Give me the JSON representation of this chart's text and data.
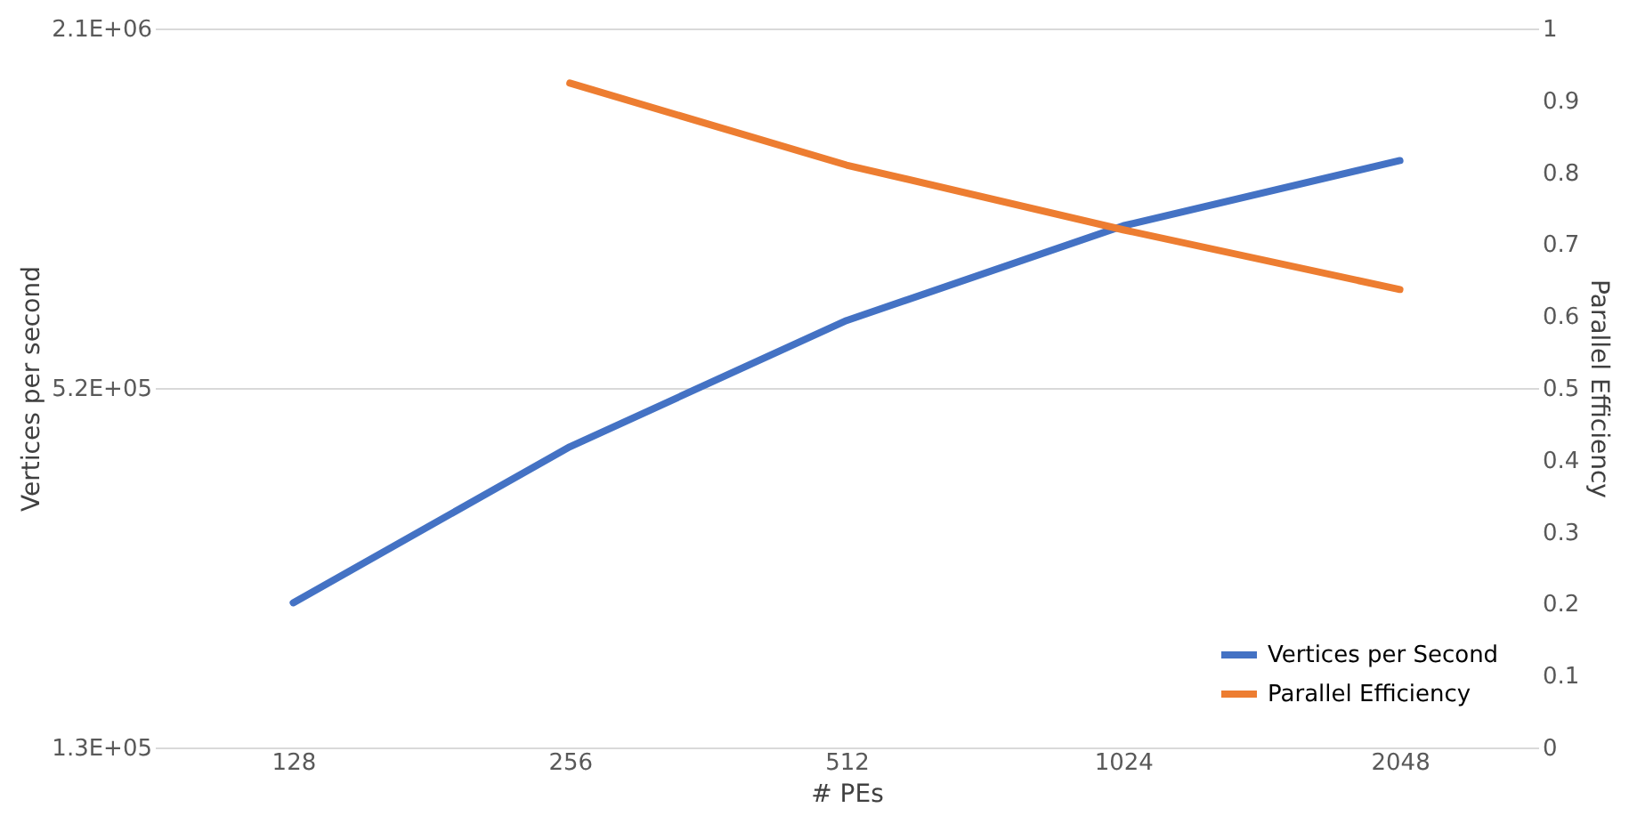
{
  "chart_data": {
    "type": "line",
    "xlabel": "# PEs",
    "ylabel": "Vertices per second",
    "y2label": "Parallel Efficiency",
    "categories": [
      "128",
      "256",
      "512",
      "1024",
      "2048"
    ],
    "series": [
      {
        "name": "Vertices per Second",
        "color": "#4472c4",
        "values": [
          229000,
          418000,
          680000,
          980000,
          1260000
        ]
      },
      {
        "name": "Parallel Efficiency",
        "color": "#ed7d31",
        "axis": "y2",
        "values": [
          null,
          0.924,
          0.81,
          0.72,
          0.637
        ]
      }
    ],
    "log": "y",
    "ylim": [
      131072,
      2097152
    ],
    "yticks": [
      {
        "value": 131072,
        "label": "1.3E+05"
      },
      {
        "value": 524288,
        "label": "5.2E+05"
      },
      {
        "value": 2097152,
        "label": "2.1E+06"
      }
    ],
    "y2lim": [
      0,
      1
    ],
    "y2ticks": [
      0,
      0.1,
      0.2,
      0.3,
      0.4,
      0.5,
      0.6,
      0.7,
      0.8,
      0.9,
      1
    ],
    "grid": "y",
    "legend": "bottom right",
    "marker": "none",
    "line_style": "solid"
  }
}
